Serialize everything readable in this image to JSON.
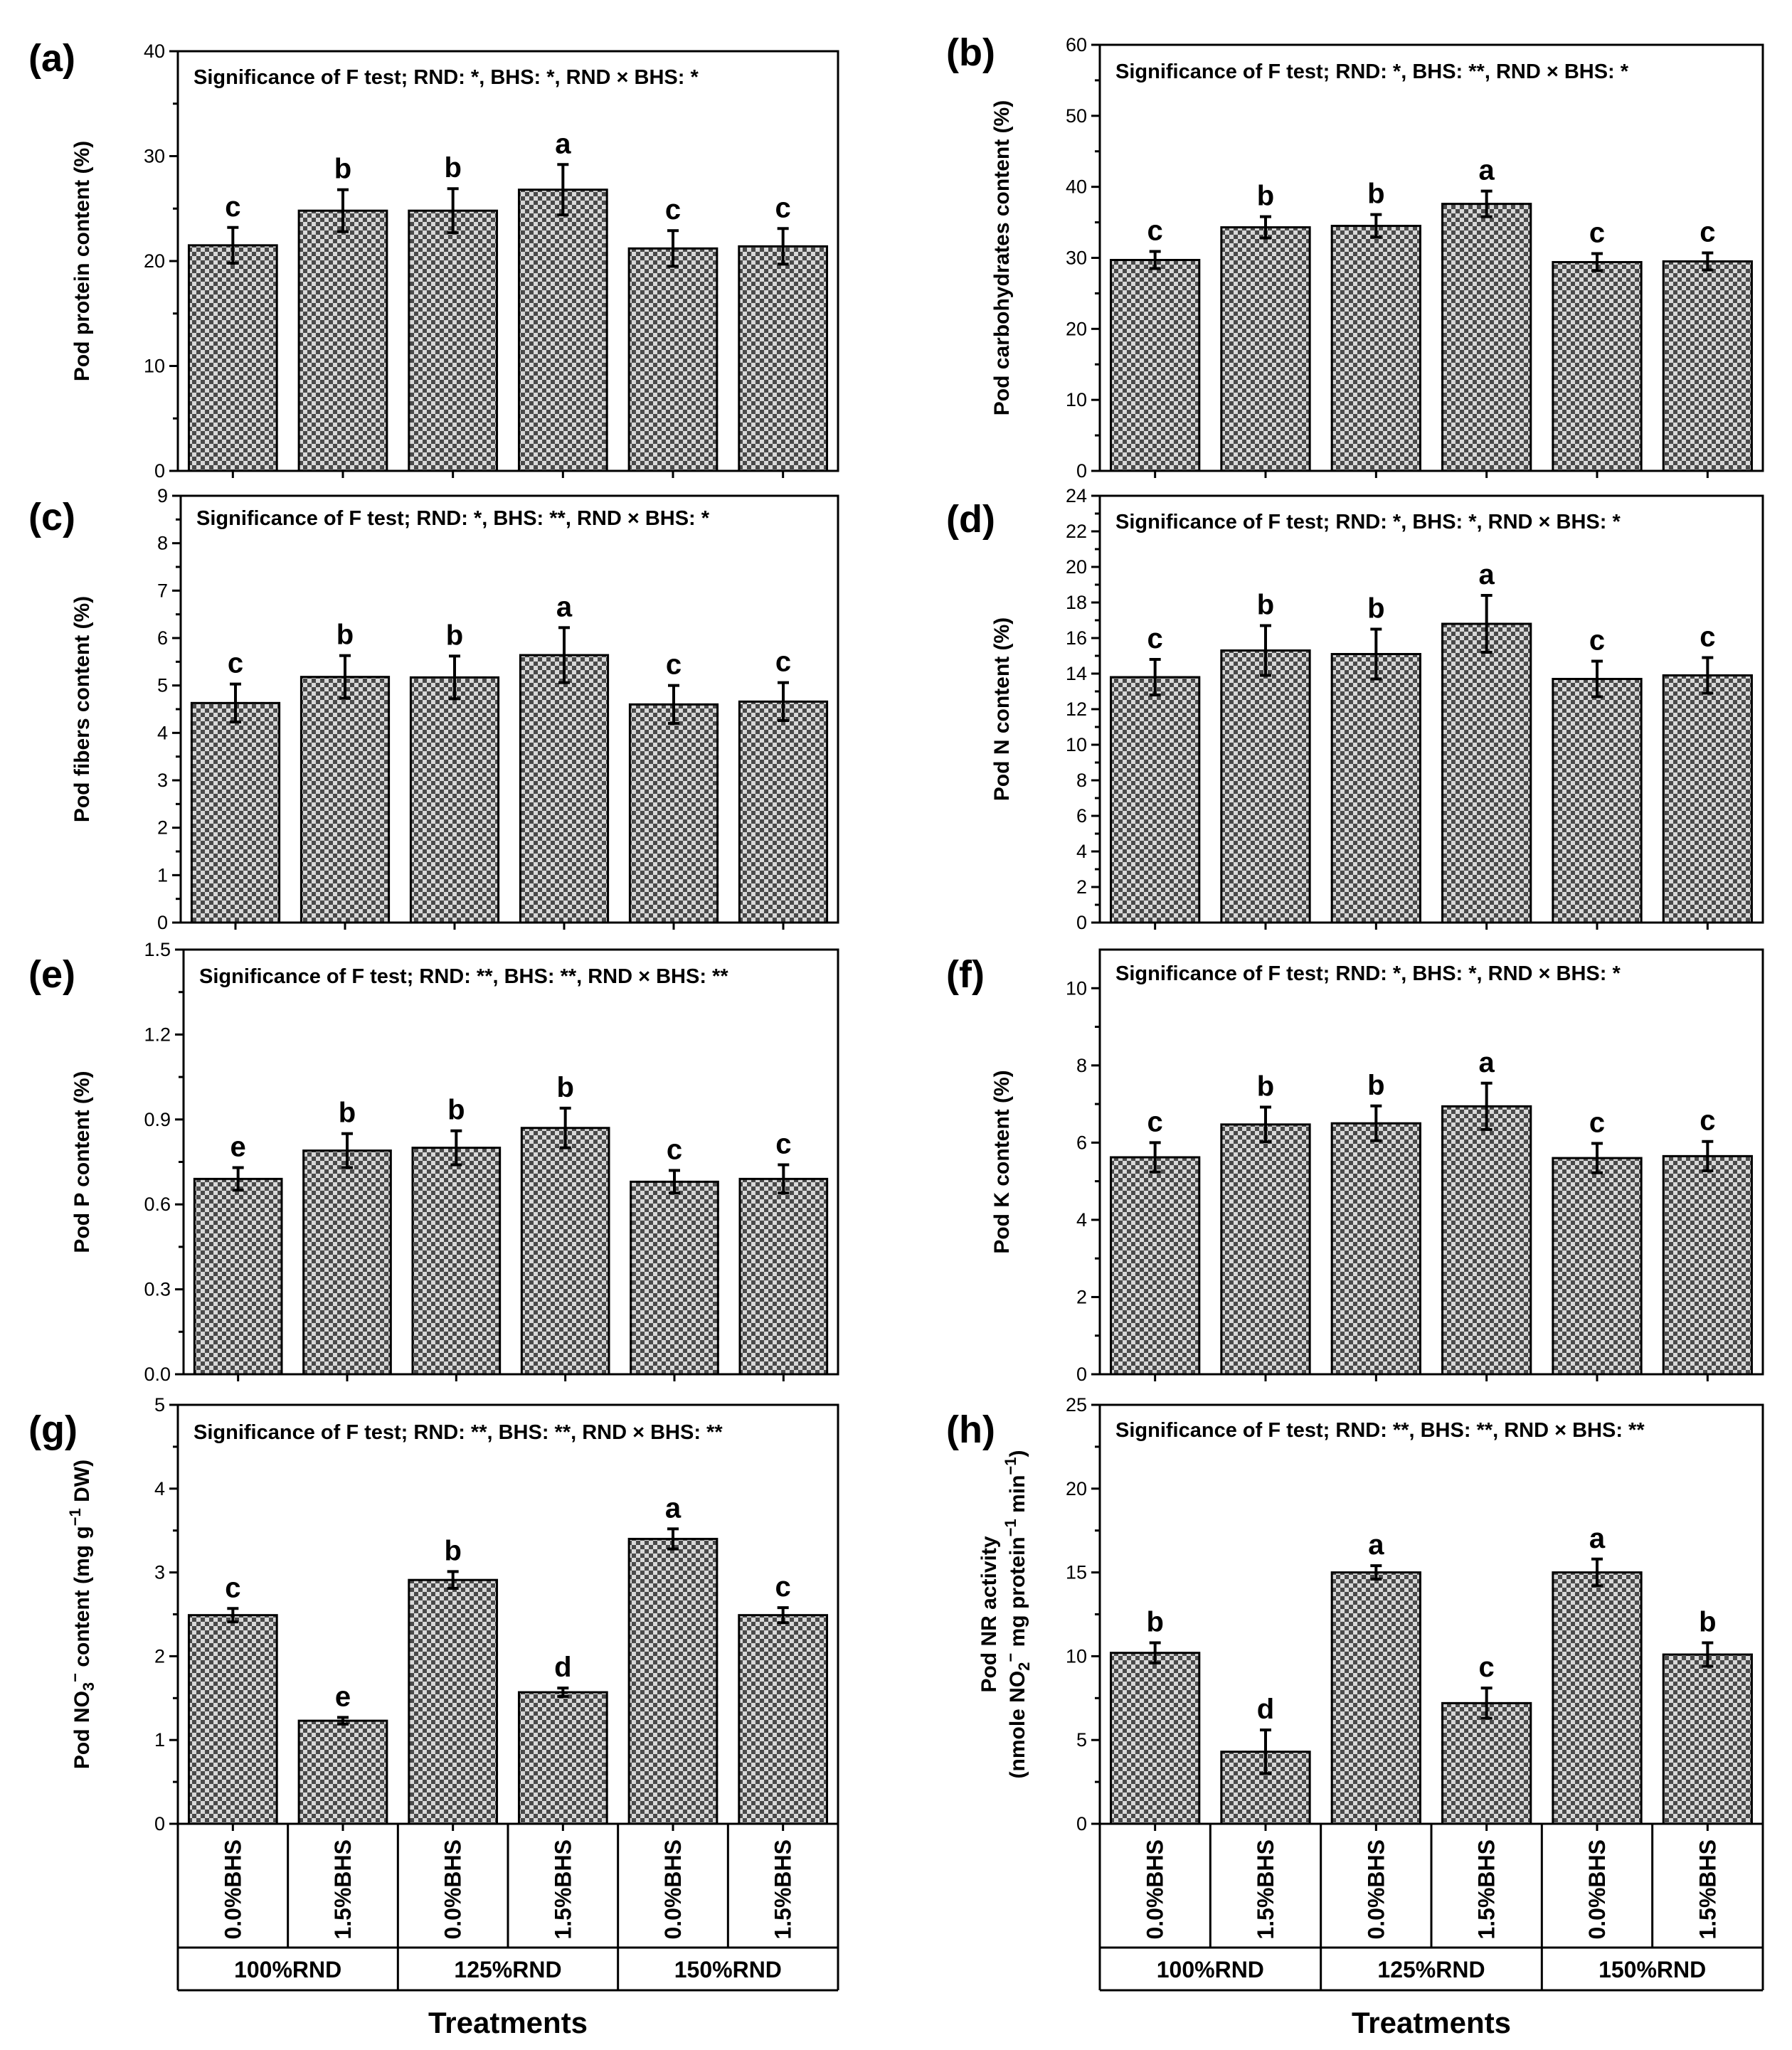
{
  "chart_data": [
    {
      "type": "bar",
      "panel": "(a)",
      "significance": "Significance of F test; RND: *, BHS: *, RND × BHS: *",
      "ylabel": "Pod protein content (%)",
      "ylim": [
        0,
        40
      ],
      "yticks": [
        "0",
        "10",
        "20",
        "30",
        "40"
      ],
      "categories": [
        "100%RND 0.0%BHS",
        "100%RND 1.5%BHS",
        "125%RND 0.0%BHS",
        "125%RND 1.5%BHS",
        "150%RND 0.0%BHS",
        "150%RND 1.5%BHS"
      ],
      "values": [
        21.5,
        24.8,
        24.8,
        26.8,
        21.2,
        21.4
      ],
      "errors": [
        1.7,
        2.0,
        2.1,
        2.4,
        1.7,
        1.7
      ],
      "letters": [
        "c",
        "b",
        "b",
        "a",
        "c",
        "c"
      ]
    },
    {
      "type": "bar",
      "panel": "(b)",
      "significance": "Significance of F test; RND: *, BHS: **, RND × BHS: *",
      "ylabel": "Pod carbohydrates content (%)",
      "ylim": [
        0,
        60
      ],
      "yticks": [
        "0",
        "10",
        "20",
        "30",
        "40",
        "50",
        "60"
      ],
      "categories": [
        "100%RND 0.0%BHS",
        "100%RND 1.5%BHS",
        "125%RND 0.0%BHS",
        "125%RND 1.5%BHS",
        "150%RND 0.0%BHS",
        "150%RND 1.5%BHS"
      ],
      "values": [
        29.7,
        34.3,
        34.5,
        37.6,
        29.4,
        29.5
      ],
      "errors": [
        1.2,
        1.5,
        1.6,
        1.8,
        1.2,
        1.2
      ],
      "letters": [
        "c",
        "b",
        "b",
        "a",
        "c",
        "c"
      ]
    },
    {
      "type": "bar",
      "panel": "(c)",
      "significance": "Significance of F test; RND: *, BHS: **, RND × BHS: *",
      "ylabel": "Pod fibers content (%)",
      "ylim": [
        0,
        9
      ],
      "yticks": [
        "0",
        "1",
        "2",
        "3",
        "4",
        "5",
        "6",
        "7",
        "8",
        "9"
      ],
      "categories": [
        "100%RND 0.0%BHS",
        "100%RND 1.5%BHS",
        "125%RND 0.0%BHS",
        "125%RND 1.5%BHS",
        "150%RND 0.0%BHS",
        "150%RND 1.5%BHS"
      ],
      "values": [
        4.63,
        5.18,
        5.17,
        5.64,
        4.6,
        4.66
      ],
      "errors": [
        0.4,
        0.45,
        0.45,
        0.58,
        0.4,
        0.4
      ],
      "letters": [
        "c",
        "b",
        "b",
        "a",
        "c",
        "c"
      ]
    },
    {
      "type": "bar",
      "panel": "(d)",
      "significance": "Significance of F test; RND: *, BHS: *, RND × BHS: *",
      "ylabel": "Pod N content (%)",
      "ylim": [
        0,
        24
      ],
      "yticks": [
        "0",
        "2",
        "4",
        "6",
        "8",
        "10",
        "12",
        "14",
        "16",
        "18",
        "20",
        "22",
        "24"
      ],
      "categories": [
        "100%RND 0.0%BHS",
        "100%RND 1.5%BHS",
        "125%RND 0.0%BHS",
        "125%RND 1.5%BHS",
        "150%RND 0.0%BHS",
        "150%RND 1.5%BHS"
      ],
      "values": [
        13.8,
        15.3,
        15.1,
        16.8,
        13.7,
        13.9
      ],
      "errors": [
        1.0,
        1.4,
        1.4,
        1.6,
        1.0,
        1.0
      ],
      "letters": [
        "c",
        "b",
        "b",
        "a",
        "c",
        "c"
      ]
    },
    {
      "type": "bar",
      "panel": "(e)",
      "significance": "Significance of F test; RND: **, BHS: **, RND × BHS: **",
      "ylabel": "Pod P content (%)",
      "ylim": [
        0,
        1.5
      ],
      "yticks": [
        "0.0",
        "0.3",
        "0.6",
        "0.9",
        "1.2",
        "1.5"
      ],
      "categories": [
        "100%RND 0.0%BHS",
        "100%RND 1.5%BHS",
        "125%RND 0.0%BHS",
        "125%RND 1.5%BHS",
        "150%RND 0.0%BHS",
        "150%RND 1.5%BHS"
      ],
      "values": [
        0.69,
        0.79,
        0.8,
        0.87,
        0.68,
        0.69
      ],
      "errors": [
        0.04,
        0.06,
        0.06,
        0.07,
        0.04,
        0.05
      ],
      "letters": [
        "e",
        "b",
        "b",
        "b",
        "c",
        "c"
      ]
    },
    {
      "type": "bar",
      "panel": "(f)",
      "significance": "Significance of F test; RND: *, BHS: *, RND × BHS: *",
      "ylabel": "Pod K content (%)",
      "ylim": [
        0,
        11
      ],
      "yticks": [
        "0",
        "2",
        "4",
        "6",
        "8",
        "10"
      ],
      "categories": [
        "100%RND 0.0%BHS",
        "100%RND 1.5%BHS",
        "125%RND 0.0%BHS",
        "125%RND 1.5%BHS",
        "150%RND 0.0%BHS",
        "150%RND 1.5%BHS"
      ],
      "values": [
        5.62,
        6.47,
        6.5,
        6.94,
        5.6,
        5.65
      ],
      "errors": [
        0.38,
        0.45,
        0.45,
        0.6,
        0.38,
        0.38
      ],
      "letters": [
        "c",
        "b",
        "b",
        "a",
        "c",
        "c"
      ]
    },
    {
      "type": "bar",
      "panel": "(g)",
      "significance": "Significance of F test; RND: **, BHS: **, RND × BHS: **",
      "ylabel_main": "Pod NO",
      "ylabel_sub": "3",
      "ylabel_sup": "−",
      "ylabel_rest": " content (mg g",
      "ylabel_sup2": "−1",
      "ylabel_end": " DW)",
      "ylim": [
        0,
        5
      ],
      "yticks": [
        "0",
        "1",
        "2",
        "3",
        "4",
        "5"
      ],
      "categories": [
        "100%RND 0.0%BHS",
        "100%RND 1.5%BHS",
        "125%RND 0.0%BHS",
        "125%RND 1.5%BHS",
        "150%RND 0.0%BHS",
        "150%RND 1.5%BHS"
      ],
      "values": [
        2.49,
        1.23,
        2.91,
        1.57,
        3.4,
        2.49
      ],
      "errors": [
        0.08,
        0.04,
        0.1,
        0.05,
        0.12,
        0.09
      ],
      "letters": [
        "c",
        "e",
        "b",
        "d",
        "a",
        "c"
      ],
      "x_labels": [
        "0.0%BHS",
        "1.5%BHS",
        "0.0%BHS",
        "1.5%BHS",
        "0.0%BHS",
        "1.5%BHS"
      ],
      "groups": [
        "100%RND",
        "125%RND",
        "150%RND"
      ],
      "xlabel": "Treatments"
    },
    {
      "type": "bar",
      "panel": "(h)",
      "significance": "Significance of F test; RND: **, BHS: **, RND × BHS: **",
      "ylabel_line1": "Pod NR activity",
      "ylabel_l2a": "(nmole NO",
      "ylabel_l2sub": "2",
      "ylabel_l2sup": "−",
      "ylabel_l2b": " mg protein",
      "ylabel_l2sup2": "−1",
      "ylabel_l2c": " min",
      "ylabel_l2sup3": "−1",
      "ylabel_l2d": ")",
      "ylim": [
        0,
        25
      ],
      "yticks": [
        "0",
        "5",
        "10",
        "15",
        "20",
        "25"
      ],
      "categories": [
        "100%RND 0.0%BHS",
        "100%RND 1.5%BHS",
        "125%RND 0.0%BHS",
        "125%RND 1.5%BHS",
        "150%RND 0.0%BHS",
        "150%RND 1.5%BHS"
      ],
      "values": [
        10.2,
        4.3,
        15.0,
        7.2,
        15.0,
        10.1
      ],
      "errors": [
        0.6,
        1.3,
        0.4,
        0.9,
        0.8,
        0.7
      ],
      "letters": [
        "b",
        "d",
        "a",
        "c",
        "a",
        "b"
      ],
      "x_labels": [
        "0.0%BHS",
        "1.5%BHS",
        "0.0%BHS",
        "1.5%BHS",
        "0.0%BHS",
        "1.5%BHS"
      ],
      "groups": [
        "100%RND",
        "125%RND",
        "150%RND"
      ],
      "xlabel": "Treatments"
    }
  ],
  "colors": {
    "bar_dark": "#4a4a4a",
    "bar_light": "#d8d8d8",
    "ink": "#000000"
  }
}
